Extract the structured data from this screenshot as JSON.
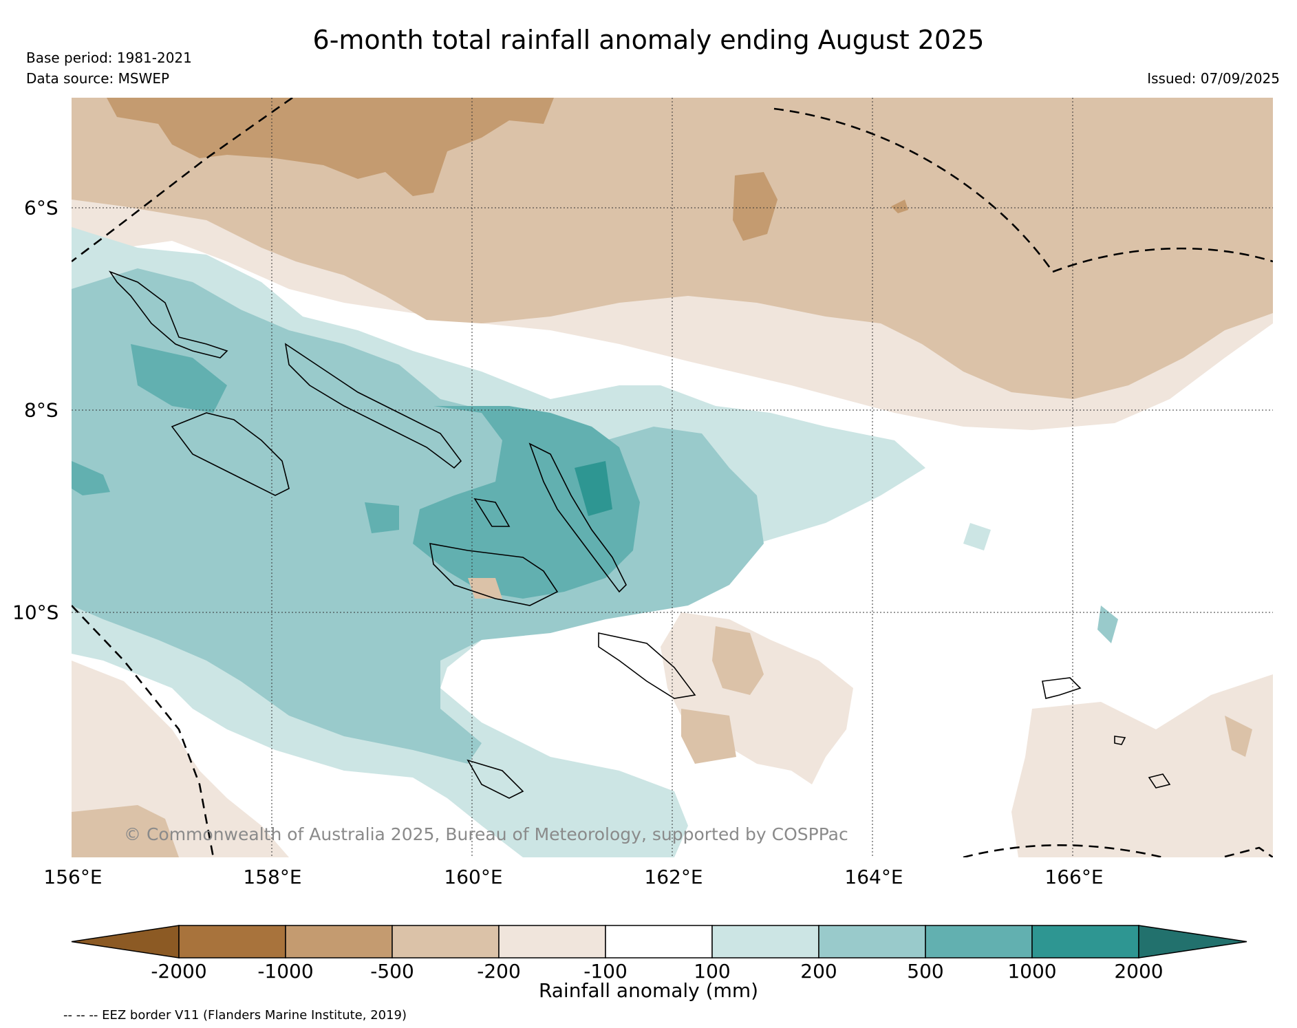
{
  "header": {
    "title": "6-month total rainfall anomaly ending August 2025",
    "base_period": "Base period: 1981-2021",
    "data_source": "Data source: MSWEP",
    "issued": "Issued: 07/09/2025"
  },
  "map": {
    "longitude_labels": [
      "156°E",
      "158°E",
      "160°E",
      "162°E",
      "164°E",
      "166°E"
    ],
    "latitude_labels": [
      "6°S",
      "8°S",
      "10°S"
    ],
    "copyright": "© Commonwealth of Australia 2025, Bureau of Meteorology, supported by COSPPac"
  },
  "colorbar": {
    "title": "Rainfall anomaly (mm)",
    "ticks": [
      "-2000",
      "-1000",
      "-500",
      "-200",
      "-100",
      "100",
      "200",
      "500",
      "1000",
      "2000"
    ],
    "colors": [
      "#8c5a24",
      "#a8733c",
      "#c49b70",
      "#dbc2a8",
      "#f0e5dc",
      "#ffffff",
      "#cce5e4",
      "#99cacb",
      "#62b0b0",
      "#2e9692",
      "#22716d"
    ]
  },
  "footnote": "-- -- -- EEZ border V11 (Flanders Marine Institute, 2019)"
}
